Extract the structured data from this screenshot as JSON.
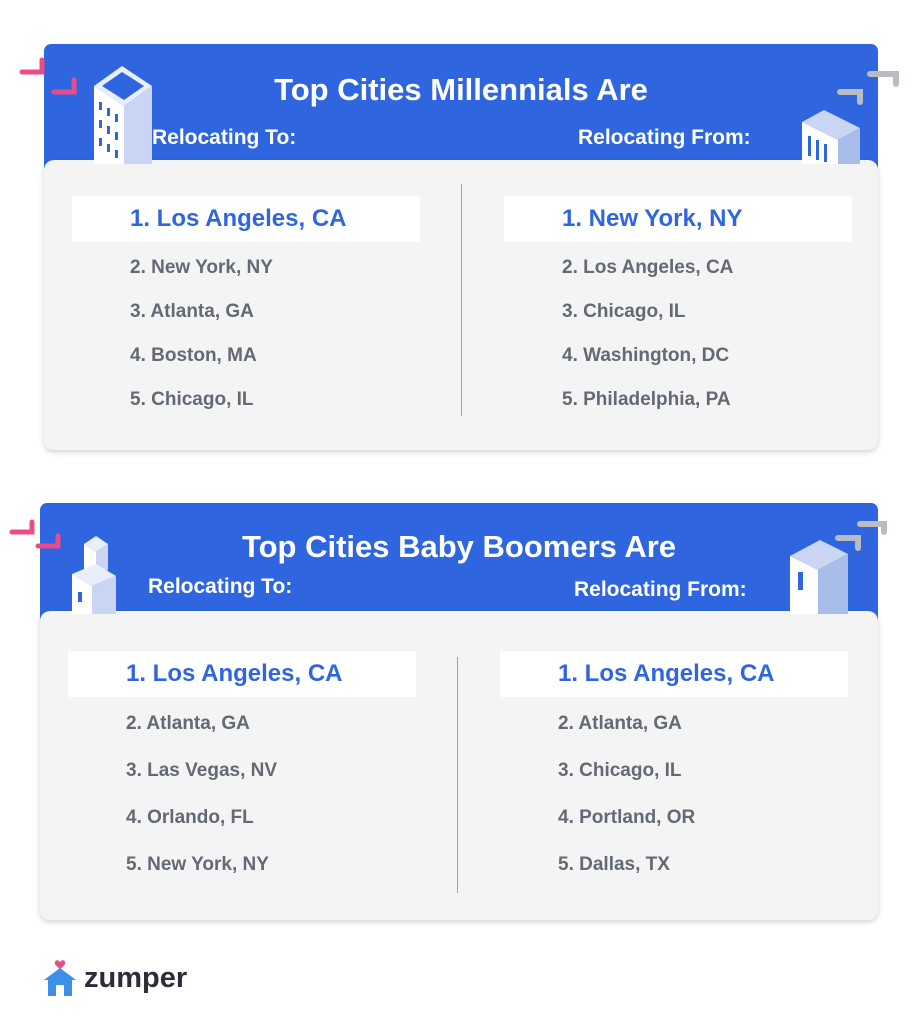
{
  "infographics": [
    {
      "title": "Top Cities Millennials Are",
      "to_heading": "Relocating To:",
      "from_heading": "Relocating From:",
      "to": [
        "1. Los Angeles, CA",
        "2. New York, NY",
        "3. Atlanta, GA",
        "4. Boston, MA",
        "5. Chicago, IL"
      ],
      "from": [
        "1. New York, NY",
        "2. Los Angeles, CA",
        "3. Chicago, IL",
        "4. Washington, DC",
        "5. Philadelphia, PA"
      ]
    },
    {
      "title": "Top Cities Baby Boomers Are",
      "to_heading": "Relocating To:",
      "from_heading": "Relocating From:",
      "to": [
        "1. Los Angeles, CA",
        "2. Atlanta, GA",
        "3. Las Vegas, NV",
        "4. Orlando, FL",
        "5. New York, NY"
      ],
      "from": [
        "1. Los Angeles, CA",
        "2. Atlanta, GA",
        "3. Chicago, IL",
        "4. Portland, OR",
        "5. Dallas, TX"
      ]
    }
  ],
  "brand": {
    "name": "zumper"
  },
  "colors": {
    "banner": "#2f66e0",
    "highlight_text": "#2f66e0",
    "item_text": "#626a75",
    "panel": "#f4f4f4",
    "accent_pink": "#ea4c89",
    "accent_gray": "#b9bcc2",
    "logo_blue": "#3d8fe8"
  },
  "icons": [
    "building-illustration",
    "corner-bracket-decoration",
    "zumper-house-icon"
  ]
}
